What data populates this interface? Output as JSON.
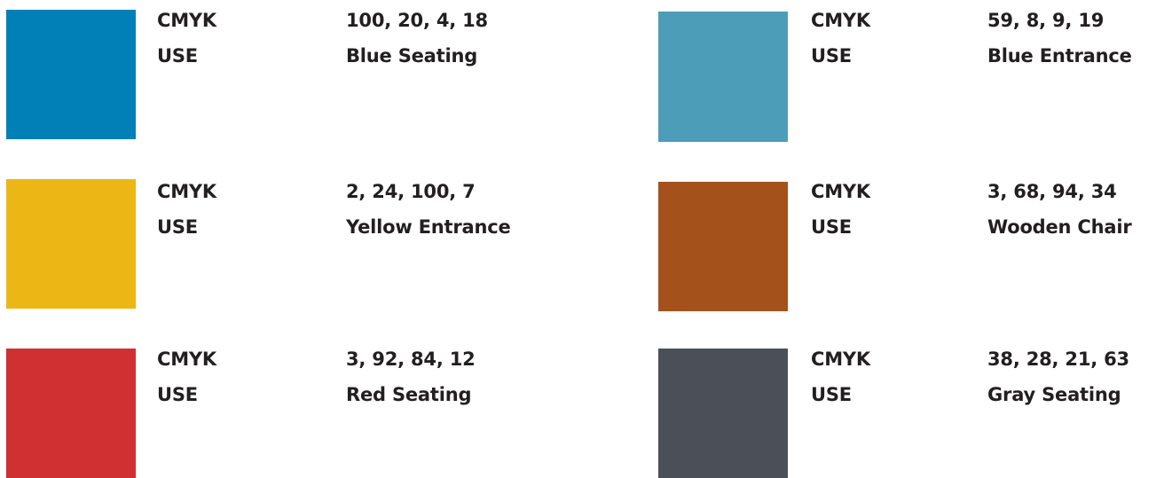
{
  "label_cmyk": "CMYK",
  "label_use": "USE",
  "colors": [
    {
      "cmyk": "100, 20, 4, 18",
      "use": "Blue Seating",
      "swatch": "#0080b6"
    },
    {
      "cmyk": "59, 8, 9, 19",
      "use": "Blue Entrance",
      "swatch": "#4c9db8"
    },
    {
      "cmyk": "2, 24, 100, 7",
      "use": "Yellow Entrance",
      "swatch": "#ecb714"
    },
    {
      "cmyk": "3, 68, 94, 34",
      "use": "Wooden Chair",
      "swatch": "#a4511b"
    },
    {
      "cmyk": "3, 92, 84, 12",
      "use": "Red Seating",
      "swatch": "#d03032"
    },
    {
      "cmyk": "38, 28, 21, 63",
      "use": "Gray Seating",
      "swatch": "#4b5058"
    }
  ]
}
